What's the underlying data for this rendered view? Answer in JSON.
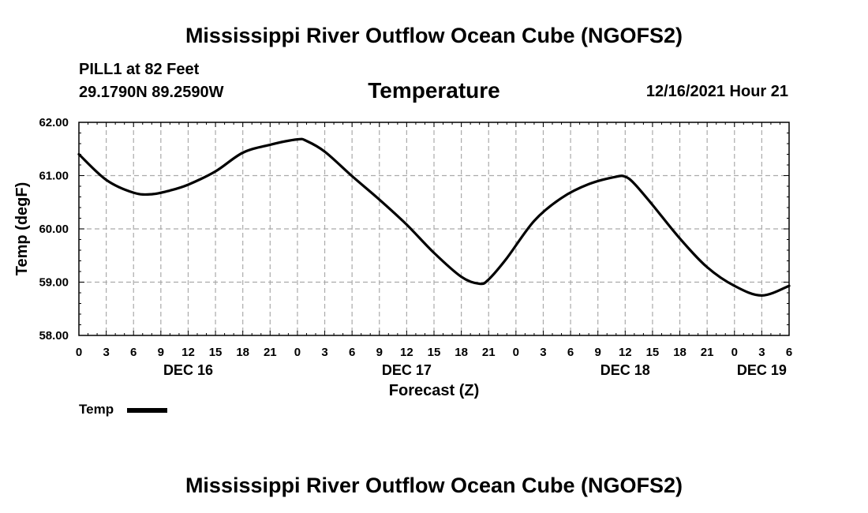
{
  "header": {
    "title_top": "Mississippi River Outflow Ocean Cube (NGOFS2)",
    "title_bottom": "Mississippi River Outflow Ocean Cube (NGOFS2)",
    "station": "PILL1 at 82 Feet",
    "coords": "29.1790N  89.2590W",
    "variable": "Temperature",
    "datetime": "12/16/2021 Hour 21"
  },
  "legend": {
    "label": "Temp"
  },
  "chart_data": {
    "type": "line",
    "title": "Temperature",
    "xlabel": "Forecast (Z)",
    "ylabel": "Temp (degF)",
    "grid": true,
    "x_unit": "hours since DEC 16 00Z",
    "xlim": [
      0,
      78
    ],
    "ylim": [
      58.0,
      62.0
    ],
    "y_ticks": [
      "58.00",
      "59.00",
      "60.00",
      "61.00",
      "62.00"
    ],
    "x_tick_labels": [
      "0",
      "3",
      "6",
      "9",
      "12",
      "15",
      "18",
      "21",
      "0",
      "3",
      "6",
      "9",
      "12",
      "15",
      "18",
      "21",
      "0",
      "3",
      "6",
      "9",
      "12",
      "15",
      "18",
      "21",
      "0",
      "3",
      "6"
    ],
    "date_labels": [
      {
        "label": "DEC 16",
        "hour": 12
      },
      {
        "label": "DEC 17",
        "hour": 36
      },
      {
        "label": "DEC 18",
        "hour": 60
      },
      {
        "label": "DEC 19",
        "hour": 75
      }
    ],
    "series": [
      {
        "name": "Temp",
        "x": [
          0,
          3,
          6,
          8,
          10,
          12,
          15,
          18,
          21,
          24,
          25,
          27,
          30,
          33,
          36,
          39,
          42,
          44,
          45,
          47,
          50,
          53,
          56,
          59,
          60,
          61,
          63,
          66,
          69,
          72,
          75,
          78
        ],
        "values": [
          61.4,
          60.92,
          60.68,
          60.65,
          60.72,
          60.83,
          61.08,
          61.43,
          61.58,
          61.68,
          61.65,
          61.45,
          60.99,
          60.55,
          60.08,
          59.55,
          59.1,
          58.97,
          59.05,
          59.45,
          60.15,
          60.58,
          60.84,
          60.98,
          60.98,
          60.85,
          60.45,
          59.82,
          59.28,
          58.93,
          58.75,
          58.93
        ]
      }
    ]
  }
}
